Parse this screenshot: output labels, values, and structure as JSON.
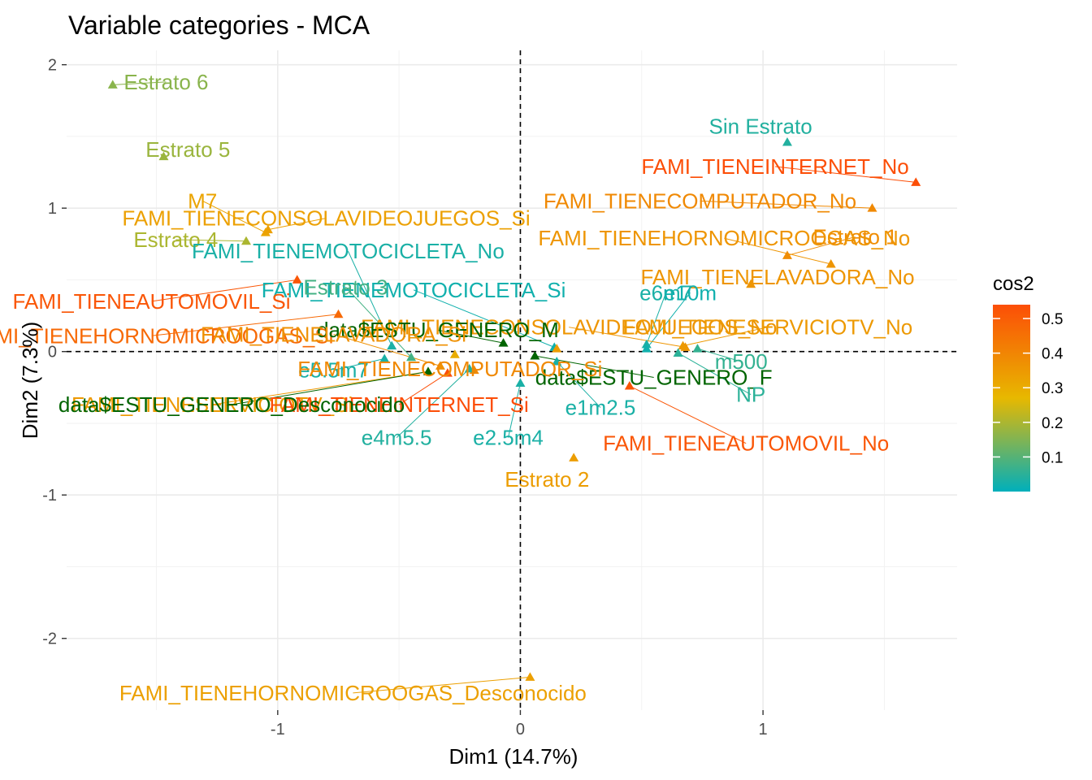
{
  "chart_data": {
    "type": "scatter",
    "title": "Variable categories - MCA",
    "xlabel": "Dim1 (14.7%)",
    "ylabel": "Dim2 (7.3%)",
    "xlim": [
      -1.87,
      1.8
    ],
    "ylim": [
      -2.5,
      2.1
    ],
    "xticks": [
      -1,
      0,
      1
    ],
    "yticks": [
      -2,
      -1,
      0,
      1,
      2
    ],
    "grid": true,
    "reference_lines": {
      "x": 0,
      "y": 0,
      "style": "dashed"
    },
    "legend": {
      "title": "cos2",
      "position": "right",
      "ticks": [
        0.1,
        0.2,
        0.3,
        0.4,
        0.5
      ],
      "range": [
        0.0,
        0.54
      ]
    },
    "colors": {
      "low": "#00AFBB",
      "mid": "#E7B800",
      "high": "#FC4E07",
      "gender": "#006400"
    },
    "points": [
      {
        "label": "Estrato 6",
        "x": -1.68,
        "y": 1.86,
        "cos2": 0.16,
        "lx": -1.46,
        "ly": 1.88
      },
      {
        "label": "Estrato 5",
        "x": -1.47,
        "y": 1.36,
        "cos2": 0.18,
        "lx": -1.37,
        "ly": 1.41
      },
      {
        "label": "Sin Estrato",
        "x": 1.1,
        "y": 1.46,
        "cos2": 0.04,
        "lx": 0.99,
        "ly": 1.57
      },
      {
        "label": "FAMI_TIENEINTERNET_No",
        "x": 1.63,
        "y": 1.18,
        "cos2": 0.54,
        "lx": 1.05,
        "ly": 1.29
      },
      {
        "label": "FAMI_TIENECOMPUTADOR_No",
        "x": 1.45,
        "y": 1.0,
        "cos2": 0.39,
        "lx": 0.74,
        "ly": 1.05
      },
      {
        "label": "M7",
        "x": -1.05,
        "y": 0.83,
        "cos2": 0.32,
        "lx": -1.31,
        "ly": 1.05
      },
      {
        "label": "FAMI_TIENECONSOLAVIDEOJUEGOS_Si",
        "x": -1.04,
        "y": 0.85,
        "cos2": 0.33,
        "lx": -0.8,
        "ly": 0.93
      },
      {
        "label": "Estrato 1",
        "x": 1.1,
        "y": 0.67,
        "cos2": 0.38,
        "lx": 1.38,
        "ly": 0.8
      },
      {
        "label": "FAMI_TIENEHORNOMICROOGAS_No",
        "x": 1.28,
        "y": 0.61,
        "cos2": 0.36,
        "lx": 0.84,
        "ly": 0.79
      },
      {
        "label": "Estrato 4",
        "x": -1.13,
        "y": 0.77,
        "cos2": 0.2,
        "lx": -1.42,
        "ly": 0.78
      },
      {
        "label": "FAMI_TIENEMOTOCICLETA_No",
        "x": -0.53,
        "y": 0.04,
        "cos2": 0.03,
        "lx": -0.71,
        "ly": 0.7
      },
      {
        "label": "FAMI_TIENELAVADORA_No",
        "x": 0.95,
        "y": 0.47,
        "cos2": 0.36,
        "lx": 1.06,
        "ly": 0.52
      },
      {
        "label": "FAMI_TIENEMOTOCICLETA_Si",
        "x": 0.14,
        "y": 0.03,
        "cos2": 0.02,
        "lx": -0.44,
        "ly": 0.43
      },
      {
        "label": "e6m7",
        "x": 0.52,
        "y": 0.05,
        "cos2": 0.03,
        "lx": 0.6,
        "ly": 0.41
      },
      {
        "label": "e10m",
        "x": 0.52,
        "y": 0.02,
        "cos2": 0.02,
        "lx": 0.7,
        "ly": 0.41
      },
      {
        "label": "Estrato 3",
        "x": -0.45,
        "y": -0.04,
        "cos2": 0.08,
        "lx": -0.72,
        "ly": 0.45
      },
      {
        "label": "FAMI_TIENEAUTOMOVIL_Si",
        "x": -0.92,
        "y": 0.5,
        "cos2": 0.52,
        "lx": -1.52,
        "ly": 0.35
      },
      {
        "label": "FAMI_TIENEHORNOMICROOGAS_Si",
        "x": -0.75,
        "y": 0.26,
        "cos2": 0.47,
        "lx": -1.52,
        "ly": 0.11
      },
      {
        "label": "FAMI_TIENECONSOLAVIDEOJUEGOS_No",
        "x": 0.68,
        "y": 0.03,
        "cos2": 0.36,
        "lx": 0.2,
        "ly": 0.17
      },
      {
        "label": "FAMI_TIENESERVICIOTV_No",
        "x": 0.67,
        "y": 0.04,
        "cos2": 0.35,
        "lx": 1.02,
        "ly": 0.17
      },
      {
        "label": "FAMI_TIENEMOTOCICLETA_Si_ov",
        "display": "FAMI_TIENECONSOLAVIDEOJUEGOS_No",
        "x": 0.15,
        "y": 0.02,
        "cos2": 0.34,
        "lx": 0.22,
        "ly": 0.15,
        "hidden": true
      },
      {
        "label": "data$ESTU_GENERO_M",
        "x": -0.07,
        "y": 0.06,
        "cos2": 0.0,
        "lx": -0.34,
        "ly": 0.15,
        "gender": true
      },
      {
        "label": "FAMI_TIENELAVADORA_Si",
        "x": -0.33,
        "y": -0.1,
        "cos2": 0.37,
        "lx": -0.77,
        "ly": 0.12
      },
      {
        "label": "data$ESTU_GENERO_F",
        "x": 0.06,
        "y": -0.03,
        "cos2": 0.0,
        "lx": 0.55,
        "ly": -0.18,
        "gender": true
      },
      {
        "label": "m500",
        "x": 0.73,
        "y": 0.02,
        "cos2": 0.06,
        "lx": 0.91,
        "ly": -0.07
      },
      {
        "label": "NP",
        "x": 0.65,
        "y": -0.01,
        "cos2": 0.05,
        "lx": 0.95,
        "ly": -0.3
      },
      {
        "label": "e5.5m7",
        "x": -0.56,
        "y": -0.05,
        "cos2": 0.03,
        "lx": -0.77,
        "ly": -0.13
      },
      {
        "label": "FAMI_TIENECOMPUTADOR_Si",
        "x": -0.19,
        "y": -0.13,
        "cos2": 0.39,
        "lx": -0.29,
        "ly": -0.12
      },
      {
        "label": "FAMI_TIENESERVICIOTV_Si",
        "x": -0.38,
        "y": -0.14,
        "cos2": 0.35,
        "lx": -1.27,
        "ly": -0.37
      },
      {
        "label": "FAMI_TIENEINTERNET_Si",
        "x": -0.3,
        "y": -0.15,
        "cos2": 0.54,
        "lx": -0.5,
        "ly": -0.37
      },
      {
        "label": "data$ESTU_GENERO_Desconocido",
        "x": -0.38,
        "y": -0.14,
        "cos2": 0.0,
        "lx": -1.19,
        "ly": -0.37,
        "gender": true
      },
      {
        "label": "e1m2.5",
        "x": 0.15,
        "y": -0.07,
        "cos2": 0.03,
        "lx": 0.33,
        "ly": -0.39
      },
      {
        "label": "FAMI_TIENEAUTOMOVIL_No",
        "x": 0.45,
        "y": -0.24,
        "cos2": 0.52,
        "lx": 0.93,
        "ly": -0.64
      },
      {
        "label": "e4m5.5",
        "x": -0.21,
        "y": -0.12,
        "cos2": 0.04,
        "lx": -0.51,
        "ly": -0.6
      },
      {
        "label": "e2.5m4",
        "x": 0.0,
        "y": -0.22,
        "cos2": 0.03,
        "lx": -0.05,
        "ly": -0.6
      },
      {
        "label": "Estrato 2",
        "x": 0.22,
        "y": -0.74,
        "cos2": 0.34,
        "lx": 0.11,
        "ly": -0.89
      },
      {
        "label": "FAMI_TIENEHORNOMICROOGAS_Desconocido",
        "x": 0.04,
        "y": -2.27,
        "cos2": 0.33,
        "lx": -0.69,
        "ly": -2.38
      },
      {
        "label": "FAMI_TIENEHORNOMICROOGAS_extra",
        "display": "",
        "x": -0.27,
        "y": -0.02,
        "cos2": 0.3,
        "lx": -0.27,
        "ly": -0.02,
        "hidden": true
      }
    ]
  }
}
